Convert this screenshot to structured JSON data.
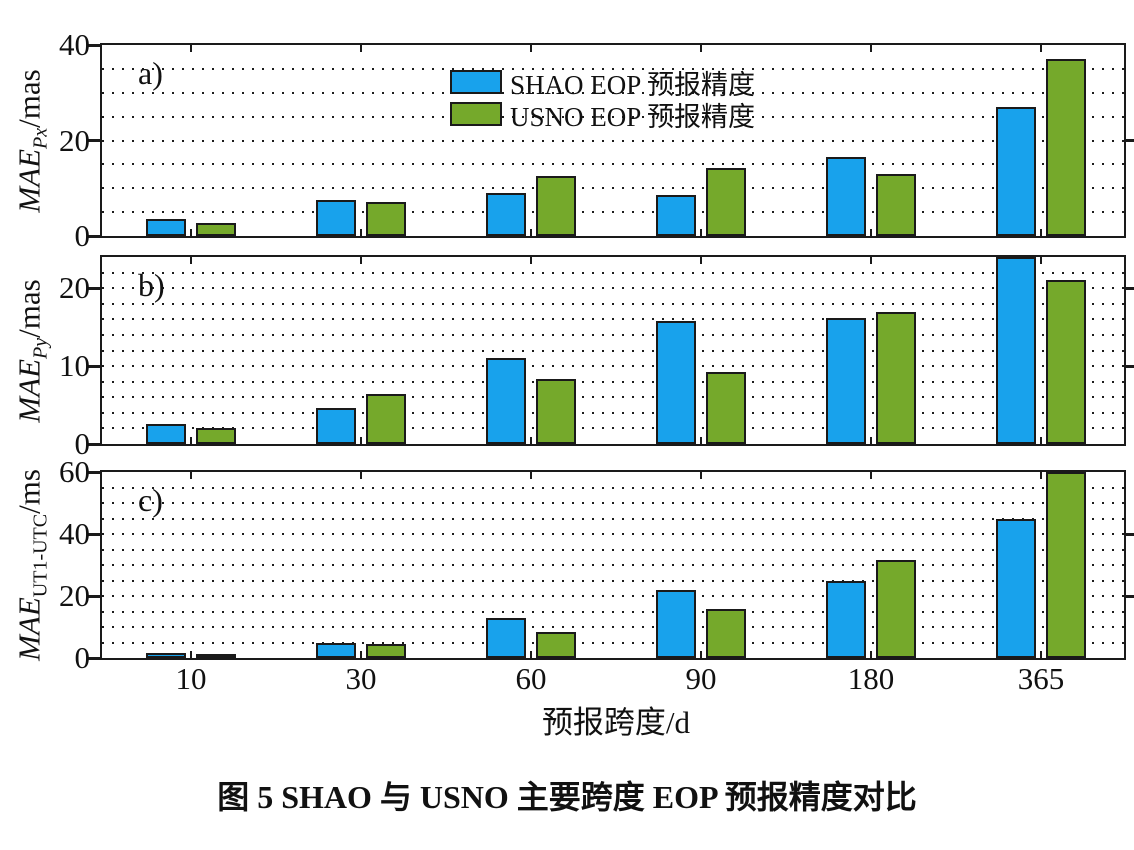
{
  "figure": {
    "caption": "图 5  SHAO 与 USNO 主要跨度 EOP 预报精度对比",
    "x_axis_title": "预报跨度/d"
  },
  "legend": {
    "items": [
      {
        "label": "SHAO EOP 预报精度",
        "color": "#18A2EC"
      },
      {
        "label": "USNO EOP 预报精度",
        "color": "#75A92B"
      }
    ]
  },
  "colors": {
    "shao_blue": "#18A2EC",
    "usno_green": "#75A92B",
    "axis_black": "#1a1a1a"
  },
  "chart_data": [
    {
      "type": "bar",
      "panel_tag": "a)",
      "ylabel": {
        "main": "MAE",
        "sub": "Px",
        "sub_italic": true,
        "unit": "/mas"
      },
      "ylim": [
        0,
        40
      ],
      "yticks": [
        0,
        20,
        40
      ],
      "grid_step": 5,
      "grid": "dotted horizontal",
      "categories": [
        "10",
        "30",
        "60",
        "90",
        "180",
        "365"
      ],
      "series": [
        {
          "name": "SHAO EOP 预报精度",
          "color": "#18A2EC",
          "values": [
            3.5,
            7.5,
            9.0,
            8.5,
            16.5,
            27.0
          ]
        },
        {
          "name": "USNO EOP 预报精度",
          "color": "#75A92B",
          "values": [
            2.7,
            7.2,
            12.5,
            14.3,
            13.0,
            37.0
          ]
        }
      ]
    },
    {
      "type": "bar",
      "panel_tag": "b)",
      "ylabel": {
        "main": "MAE",
        "sub": "Py",
        "sub_italic": true,
        "unit": "/mas"
      },
      "ylim": [
        0,
        24
      ],
      "yticks": [
        0,
        10,
        20
      ],
      "grid_step": 2,
      "grid": "dotted horizontal",
      "categories": [
        "10",
        "30",
        "60",
        "90",
        "180",
        "365"
      ],
      "note": "SHAO bar at 365 d is clipped at the top of the panel",
      "series": [
        {
          "name": "SHAO EOP 预报精度",
          "color": "#18A2EC",
          "values": [
            2.6,
            4.6,
            11.0,
            15.8,
            16.2,
            24.0
          ]
        },
        {
          "name": "USNO EOP 预报精度",
          "color": "#75A92B",
          "values": [
            2.0,
            6.4,
            8.4,
            9.2,
            17.0,
            21.0
          ]
        }
      ]
    },
    {
      "type": "bar",
      "panel_tag": "c)",
      "ylabel": {
        "main": "MAE",
        "sub": "UT1-UTC",
        "sub_italic": false,
        "unit": "/ms"
      },
      "ylim": [
        0,
        60
      ],
      "yticks": [
        0,
        20,
        40,
        60
      ],
      "grid_step": 5,
      "grid": "dotted horizontal",
      "categories": [
        "10",
        "30",
        "60",
        "90",
        "180",
        "365"
      ],
      "note": "USNO bar at 365 d is clipped at the top of the panel",
      "series": [
        {
          "name": "SHAO EOP 预报精度",
          "color": "#18A2EC",
          "values": [
            1.5,
            4.8,
            13.0,
            22.0,
            25.0,
            45.0
          ]
        },
        {
          "name": "USNO EOP 预报精度",
          "color": "#75A92B",
          "values": [
            0.8,
            4.5,
            8.4,
            15.8,
            31.5,
            60.0
          ]
        }
      ]
    }
  ]
}
